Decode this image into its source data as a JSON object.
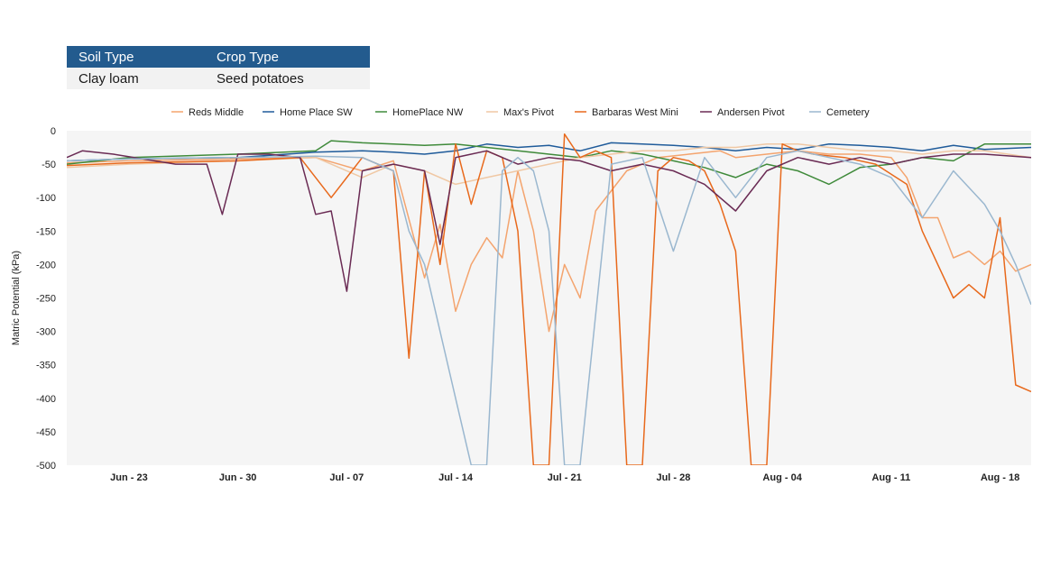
{
  "info_table": {
    "headers": [
      "Soil Type",
      "Crop Type"
    ],
    "values": [
      "Clay loam",
      "Seed potatoes"
    ]
  },
  "chart_data": {
    "type": "line",
    "title": "",
    "xlabel": "",
    "ylabel": "Matric Potential (kPa)",
    "ylim": [
      -500,
      0
    ],
    "yticks": [
      0,
      -50,
      -100,
      -150,
      -200,
      -250,
      -300,
      -350,
      -400,
      -450,
      -500
    ],
    "xlim": [
      "2023-06-19",
      "2023-08-20"
    ],
    "xticks": [
      "Jun - 23",
      "Jun - 30",
      "Jul - 07",
      "Jul - 14",
      "Jul - 21",
      "Jul - 28",
      "Aug - 04",
      "Aug - 11",
      "Aug - 18"
    ],
    "grid": false,
    "legend_position": "top",
    "series": [
      {
        "name": "Reds Middle",
        "color": "#f4a46e",
        "x": [
          "06-19",
          "06-23",
          "06-30",
          "07-05",
          "07-08",
          "07-10",
          "07-12",
          "07-13",
          "07-14",
          "07-15",
          "07-16",
          "07-17",
          "07-18",
          "07-19",
          "07-20",
          "07-21",
          "07-22",
          "07-23",
          "07-25",
          "07-27",
          "07-29",
          "07-31",
          "08-01",
          "08-03",
          "08-05",
          "08-07",
          "08-09",
          "08-11",
          "08-12",
          "08-13",
          "08-14",
          "08-15",
          "08-16",
          "08-17",
          "08-18",
          "08-19",
          "08-20"
        ],
        "y": [
          -48,
          -45,
          -42,
          -40,
          -60,
          -45,
          -220,
          -140,
          -270,
          -200,
          -160,
          -190,
          -60,
          -150,
          -300,
          -200,
          -250,
          -120,
          -60,
          -40,
          -35,
          -30,
          -40,
          -35,
          -30,
          -35,
          -35,
          -40,
          -70,
          -130,
          -130,
          -190,
          -180,
          -200,
          -180,
          -210,
          -200
        ]
      },
      {
        "name": "Home Place SW",
        "color": "#1f5b9a",
        "x": [
          "06-19",
          "06-23",
          "06-30",
          "07-05",
          "07-08",
          "07-10",
          "07-12",
          "07-14",
          "07-16",
          "07-18",
          "07-20",
          "07-22",
          "07-24",
          "07-26",
          "07-28",
          "07-30",
          "08-01",
          "08-03",
          "08-05",
          "08-07",
          "08-09",
          "08-11",
          "08-13",
          "08-15",
          "08-17",
          "08-20"
        ],
        "y": [
          -45,
          -42,
          -40,
          -32,
          -30,
          -32,
          -35,
          -30,
          -20,
          -25,
          -22,
          -30,
          -18,
          -20,
          -22,
          -25,
          -30,
          -25,
          -28,
          -20,
          -22,
          -25,
          -30,
          -22,
          -28,
          -25
        ]
      },
      {
        "name": "HomePlace NW",
        "color": "#3f8a3a",
        "x": [
          "06-19",
          "06-23",
          "06-30",
          "07-05",
          "07-06",
          "07-08",
          "07-10",
          "07-12",
          "07-14",
          "07-16",
          "07-18",
          "07-20",
          "07-22",
          "07-24",
          "07-26",
          "07-28",
          "07-30",
          "08-01",
          "08-03",
          "08-05",
          "08-07",
          "08-09",
          "08-11",
          "08-13",
          "08-15",
          "08-17",
          "08-20"
        ],
        "y": [
          -50,
          -40,
          -35,
          -30,
          -15,
          -18,
          -20,
          -22,
          -20,
          -25,
          -30,
          -35,
          -40,
          -30,
          -35,
          -45,
          -55,
          -70,
          -50,
          -60,
          -80,
          -55,
          -50,
          -40,
          -45,
          -20,
          -20
        ]
      },
      {
        "name": "Max's Pivot",
        "color": "#f0c8a4",
        "x": [
          "06-19",
          "06-23",
          "06-30",
          "07-05",
          "07-08",
          "07-10",
          "07-12",
          "07-14",
          "07-16",
          "07-18",
          "07-20",
          "07-22",
          "07-24",
          "07-26",
          "07-28",
          "07-30",
          "08-01",
          "08-03",
          "08-05",
          "08-07",
          "08-09",
          "08-11",
          "08-13",
          "08-15",
          "08-17",
          "08-20"
        ],
        "y": [
          -55,
          -50,
          -45,
          -40,
          -70,
          -50,
          -60,
          -80,
          -70,
          -60,
          -50,
          -40,
          -35,
          -30,
          -30,
          -25,
          -25,
          -20,
          -20,
          -25,
          -30,
          -30,
          -35,
          -30,
          -30,
          -40
        ]
      },
      {
        "name": "Barbaras West Mini",
        "color": "#e8691c",
        "x": [
          "06-19",
          "06-23",
          "06-30",
          "07-04",
          "07-06",
          "07-08",
          "07-10",
          "07-11",
          "07-12",
          "07-13",
          "07-14",
          "07-15",
          "07-16",
          "07-17",
          "07-18",
          "07-19",
          "07-20",
          "07-21",
          "07-22",
          "07-23",
          "07-24",
          "07-25",
          "07-26",
          "07-27",
          "07-28",
          "07-29",
          "07-30",
          "07-31",
          "08-01",
          "08-02",
          "08-03",
          "08-04",
          "08-05",
          "08-06",
          "08-08",
          "08-10",
          "08-12",
          "08-13",
          "08-14",
          "08-15",
          "08-16",
          "08-17",
          "08-18",
          "08-19",
          "08-20"
        ],
        "y": [
          -52,
          -48,
          -45,
          -40,
          -100,
          -40,
          -60,
          -340,
          -60,
          -200,
          -20,
          -110,
          -30,
          -40,
          -150,
          -500,
          -500,
          -5,
          -40,
          -30,
          -40,
          -500,
          -500,
          -60,
          -40,
          -45,
          -60,
          -110,
          -180,
          -500,
          -500,
          -20,
          -30,
          -35,
          -40,
          -50,
          -80,
          -150,
          -200,
          -250,
          -230,
          -250,
          -130,
          -380,
          -390
        ]
      },
      {
        "name": "Andersen Pivot",
        "color": "#6a2b54",
        "x": [
          "06-19",
          "06-20",
          "06-22",
          "06-26",
          "06-28",
          "06-29",
          "06-30",
          "07-02",
          "07-04",
          "07-05",
          "07-06",
          "07-07",
          "07-08",
          "07-10",
          "07-12",
          "07-13",
          "07-14",
          "07-16",
          "07-18",
          "07-20",
          "07-22",
          "07-24",
          "07-26",
          "07-28",
          "07-30",
          "08-01",
          "08-03",
          "08-05",
          "08-07",
          "08-09",
          "08-11",
          "08-13",
          "08-15",
          "08-17",
          "08-20"
        ],
        "y": [
          -40,
          -30,
          -35,
          -50,
          -50,
          -125,
          -35,
          -35,
          -40,
          -125,
          -120,
          -240,
          -60,
          -50,
          -60,
          -170,
          -40,
          -30,
          -50,
          -40,
          -45,
          -60,
          -50,
          -60,
          -80,
          -120,
          -60,
          -40,
          -50,
          -40,
          -50,
          -40,
          -35,
          -35,
          -40
        ]
      },
      {
        "name": "Cemetery",
        "color": "#9ab7cf",
        "x": [
          "06-19",
          "06-23",
          "06-30",
          "07-05",
          "07-08",
          "07-10",
          "07-11",
          "07-12",
          "07-13",
          "07-14",
          "07-15",
          "07-16",
          "07-17",
          "07-18",
          "07-19",
          "07-20",
          "07-21",
          "07-22",
          "07-24",
          "07-26",
          "07-28",
          "07-30",
          "08-01",
          "08-03",
          "08-05",
          "08-07",
          "08-09",
          "08-11",
          "08-13",
          "08-15",
          "08-17",
          "08-18",
          "08-19",
          "08-20"
        ],
        "y": [
          -45,
          -42,
          -40,
          -38,
          -40,
          -60,
          -150,
          -200,
          -300,
          -400,
          -500,
          -500,
          -60,
          -40,
          -60,
          -150,
          -500,
          -500,
          -50,
          -40,
          -180,
          -40,
          -100,
          -40,
          -30,
          -40,
          -50,
          -70,
          -130,
          -60,
          -110,
          -150,
          -200,
          -260
        ]
      }
    ]
  }
}
